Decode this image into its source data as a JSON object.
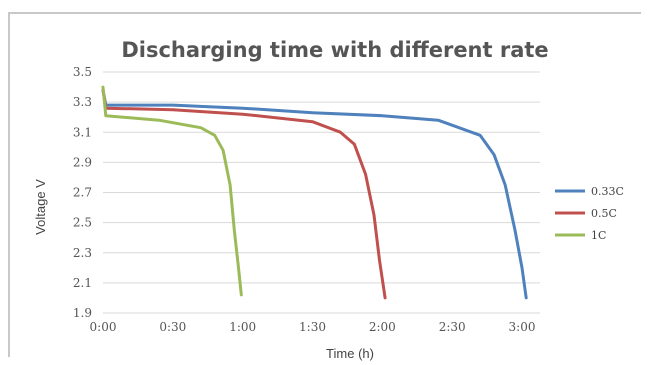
{
  "chart_data": {
    "type": "line",
    "title": "Discharging time with different rate",
    "xlabel": "Time (h)",
    "ylabel": "Voltage V",
    "x_ticks": [
      "0:00",
      "0:30",
      "1:00",
      "1:30",
      "2:00",
      "2:30",
      "3:00"
    ],
    "y_ticks": [
      "1.9",
      "2.1",
      "2.3",
      "2.5",
      "2.7",
      "2.9",
      "3.1",
      "3.3",
      "3.5"
    ],
    "xlim": [
      0,
      3.1
    ],
    "ylim": [
      1.9,
      3.5
    ],
    "grid": "horizontal",
    "legend": "right",
    "series": [
      {
        "name": "0.33C",
        "color": "#4f81bd",
        "x": [
          0,
          0.02,
          0.5,
          1.0,
          1.5,
          2.0,
          2.4,
          2.7,
          2.8,
          2.88,
          2.95,
          3.0,
          3.03
        ],
        "y": [
          3.38,
          3.28,
          3.28,
          3.26,
          3.23,
          3.21,
          3.18,
          3.08,
          2.95,
          2.75,
          2.45,
          2.2,
          2.0
        ]
      },
      {
        "name": "0.5C",
        "color": "#c0504d",
        "x": [
          0,
          0.02,
          0.5,
          1.0,
          1.5,
          1.7,
          1.8,
          1.88,
          1.94,
          1.98,
          2.02
        ],
        "y": [
          3.38,
          3.26,
          3.25,
          3.22,
          3.17,
          3.1,
          3.02,
          2.82,
          2.55,
          2.25,
          2.0
        ]
      },
      {
        "name": "1C",
        "color": "#9bbb59",
        "x": [
          0,
          0.02,
          0.4,
          0.7,
          0.8,
          0.86,
          0.91,
          0.94,
          0.97,
          0.99
        ],
        "y": [
          3.4,
          3.21,
          3.18,
          3.13,
          3.08,
          2.98,
          2.75,
          2.45,
          2.2,
          2.02
        ]
      }
    ]
  }
}
